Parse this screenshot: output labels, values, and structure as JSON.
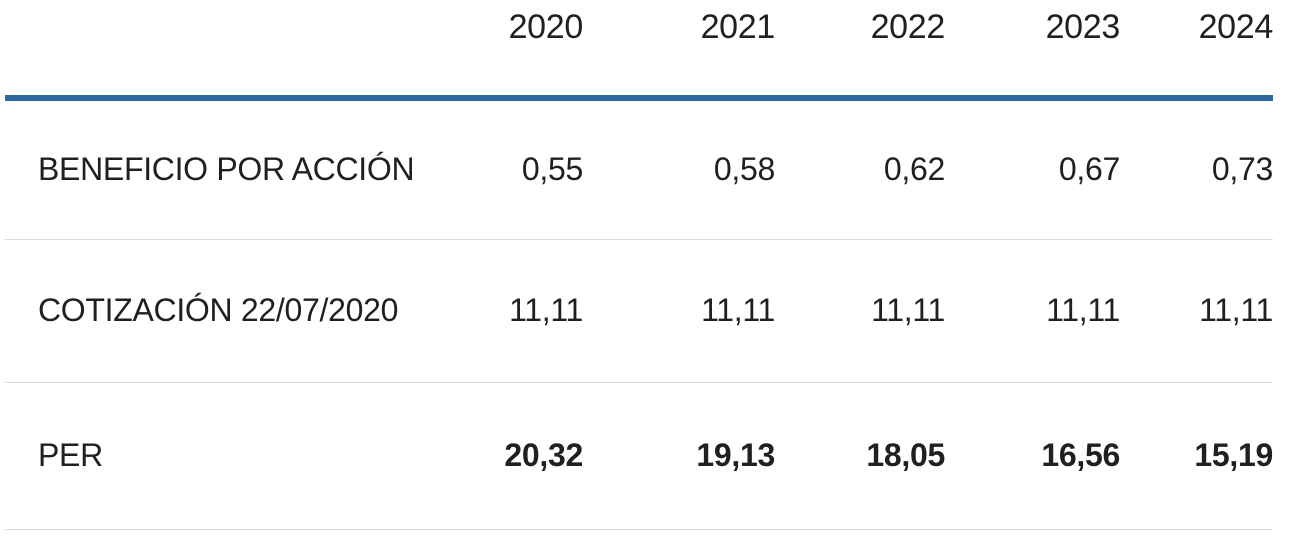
{
  "colors": {
    "accent_rule": "#2d69a0",
    "row_divider": "#dcdcdc",
    "text": "#202020"
  },
  "table": {
    "corner_label": "",
    "columns": [
      "2020",
      "2021",
      "2022",
      "2023",
      "2024"
    ],
    "rows": [
      {
        "label": "BENEFICIO POR ACCIÓN",
        "values": [
          "0,55",
          "0,58",
          "0,62",
          "0,67",
          "0,73"
        ],
        "emphasis": false
      },
      {
        "label": "COTIZACIÓN 22/07/2020",
        "values": [
          "11,11",
          "11,11",
          "11,11",
          "11,11",
          "11,11"
        ],
        "emphasis": false
      },
      {
        "label": "PER",
        "values": [
          "20,32",
          "19,13",
          "18,05",
          "16,56",
          "15,19"
        ],
        "emphasis": true
      }
    ]
  },
  "chart_data": {
    "type": "table",
    "title": "",
    "categories": [
      "2020",
      "2021",
      "2022",
      "2023",
      "2024"
    ],
    "series": [
      {
        "name": "BENEFICIO POR ACCIÓN",
        "values": [
          0.55,
          0.58,
          0.62,
          0.67,
          0.73
        ]
      },
      {
        "name": "COTIZACIÓN 22/07/2020",
        "values": [
          11.11,
          11.11,
          11.11,
          11.11,
          11.11
        ]
      },
      {
        "name": "PER",
        "values": [
          20.32,
          19.13,
          18.05,
          16.56,
          15.19
        ]
      }
    ],
    "number_format": "es-ES comma decimal",
    "layout": "row labels left, year columns right-aligned, emphasis on PER row values"
  }
}
